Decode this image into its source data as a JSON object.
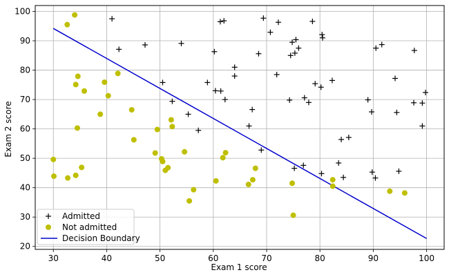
{
  "chart_data": {
    "type": "scatter",
    "title": "",
    "xlabel": "Exam 1 score",
    "ylabel": "Exam 2 score",
    "xlim": [
      26.6,
      103.3
    ],
    "ylim": [
      19.0,
      102.0
    ],
    "xticks": [
      30,
      40,
      50,
      60,
      70,
      80,
      90,
      100
    ],
    "yticks": [
      20,
      30,
      40,
      50,
      60,
      70,
      80,
      90,
      100
    ],
    "grid": true,
    "legend_position": "lower-left",
    "series": [
      {
        "name": "Admitted",
        "marker": "plus",
        "color": "#000000",
        "points": [
          [
            41.0,
            97.5
          ],
          [
            42.3,
            87.1
          ],
          [
            47.2,
            88.6
          ],
          [
            54.0,
            89.1
          ],
          [
            61.3,
            96.5
          ],
          [
            62.0,
            96.8
          ],
          [
            69.4,
            97.7
          ],
          [
            72.2,
            96.3
          ],
          [
            78.6,
            96.6
          ],
          [
            60.2,
            86.3
          ],
          [
            68.5,
            85.6
          ],
          [
            70.7,
            92.9
          ],
          [
            74.8,
            89.5
          ],
          [
            75.5,
            90.4
          ],
          [
            76.0,
            87.5
          ],
          [
            75.3,
            85.8
          ],
          [
            74.5,
            85.0
          ],
          [
            80.4,
            92.1
          ],
          [
            80.5,
            91.0
          ],
          [
            64.0,
            81.0
          ],
          [
            64.0,
            78.0
          ],
          [
            71.9,
            78.5
          ],
          [
            50.5,
            75.8
          ],
          [
            58.9,
            75.8
          ],
          [
            60.4,
            73.0
          ],
          [
            61.4,
            72.9
          ],
          [
            62.2,
            70.0
          ],
          [
            52.3,
            69.4
          ],
          [
            79.1,
            75.4
          ],
          [
            80.2,
            74.2
          ],
          [
            82.3,
            76.5
          ],
          [
            77.1,
            70.6
          ],
          [
            77.9,
            69.0
          ],
          [
            74.3,
            69.8
          ],
          [
            67.3,
            66.6
          ],
          [
            55.3,
            65.0
          ],
          [
            66.7,
            61.0
          ],
          [
            57.2,
            59.5
          ],
          [
            69.0,
            52.8
          ],
          [
            75.2,
            46.6
          ],
          [
            76.9,
            47.6
          ],
          [
            80.3,
            44.8
          ],
          [
            84.4,
            43.5
          ],
          [
            83.5,
            48.4
          ],
          [
            84.0,
            56.4
          ],
          [
            85.4,
            57.1
          ],
          [
            89.0,
            69.9
          ],
          [
            89.7,
            65.8
          ],
          [
            90.5,
            87.5
          ],
          [
            91.6,
            88.7
          ],
          [
            94.1,
            77.2
          ],
          [
            97.7,
            86.7
          ],
          [
            94.4,
            65.6
          ],
          [
            97.6,
            68.9
          ],
          [
            99.2,
            68.8
          ],
          [
            99.8,
            72.4
          ],
          [
            99.2,
            61.0
          ],
          [
            89.8,
            45.3
          ],
          [
            90.4,
            43.3
          ],
          [
            94.8,
            45.6
          ]
        ]
      },
      {
        "name": "Not admitted",
        "marker": "circle",
        "color": "#bfbf00",
        "points": [
          [
            34.0,
            98.8
          ],
          [
            32.6,
            95.5
          ],
          [
            42.1,
            78.9
          ],
          [
            34.6,
            77.9
          ],
          [
            34.2,
            75.1
          ],
          [
            35.8,
            72.9
          ],
          [
            39.6,
            75.9
          ],
          [
            40.3,
            71.3
          ],
          [
            38.8,
            65.0
          ],
          [
            44.7,
            66.5
          ],
          [
            34.5,
            60.3
          ],
          [
            45.1,
            56.3
          ],
          [
            49.5,
            59.8
          ],
          [
            52.1,
            63.1
          ],
          [
            52.3,
            60.8
          ],
          [
            49.1,
            51.8
          ],
          [
            54.6,
            52.2
          ],
          [
            50.3,
            49.8
          ],
          [
            50.5,
            48.9
          ],
          [
            51.5,
            46.8
          ],
          [
            51.0,
            45.9
          ],
          [
            62.3,
            51.9
          ],
          [
            61.8,
            50.2
          ],
          [
            67.9,
            46.6
          ],
          [
            35.3,
            46.9
          ],
          [
            30.0,
            49.6
          ],
          [
            30.1,
            43.9
          ],
          [
            32.7,
            43.3
          ],
          [
            34.2,
            44.2
          ],
          [
            56.3,
            39.3
          ],
          [
            55.5,
            35.5
          ],
          [
            60.5,
            42.3
          ],
          [
            66.6,
            41.1
          ],
          [
            67.4,
            42.7
          ],
          [
            74.8,
            41.5
          ],
          [
            75.0,
            30.6
          ],
          [
            82.4,
            42.7
          ],
          [
            82.4,
            40.5
          ],
          [
            93.1,
            38.8
          ],
          [
            95.9,
            38.2
          ]
        ]
      }
    ],
    "lines": [
      {
        "name": "Decision Boundary",
        "color": "#0000cc",
        "x": [
          30.0,
          100.0
        ],
        "y": [
          94.2,
          22.7
        ]
      }
    ]
  }
}
